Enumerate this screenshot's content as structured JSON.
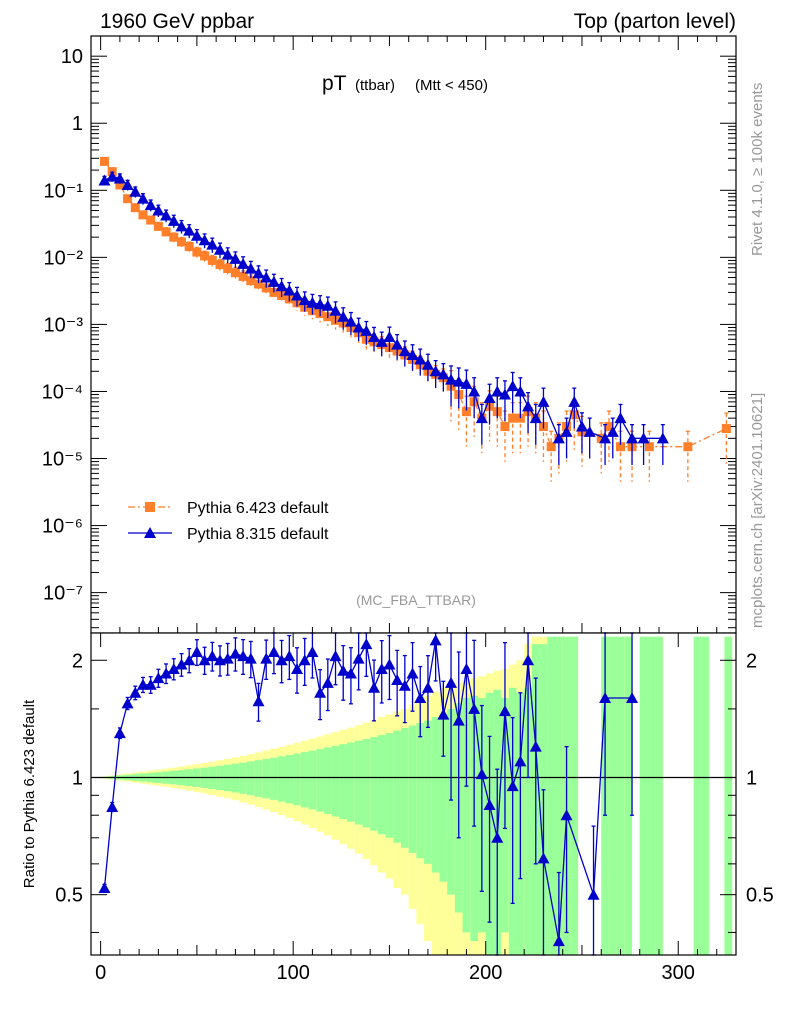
{
  "header": {
    "left": "1960 GeV ppbar",
    "right": "Top (parton level)"
  },
  "plot_title": {
    "main": "pT",
    "sub": "(ttbar)",
    "cut": "(Mtt < 450)"
  },
  "side_labels": {
    "rivet": "Rivet 4.1.0, ≥ 100k events",
    "mcplots": "mcplots.cern.ch [arXiv:2401.10621]"
  },
  "analysis_tag": "(MC_FBA_TTBAR)",
  "colors": {
    "pythia6": "#ff7f2a",
    "pythia8": "#0000cc",
    "band_inner": "#99ff99",
    "band_outer": "#ffff99"
  },
  "chart_data": [
    {
      "type": "scatter",
      "yscale": "log",
      "xlim": [
        -5,
        330
      ],
      "ylim": [
        2.5e-08,
        20
      ],
      "ytick_labels": [
        "10",
        "1",
        "10⁻¹",
        "10⁻²",
        "10⁻³",
        "10⁻⁴",
        "10⁻⁵",
        "10⁻⁶",
        "10⁻⁷"
      ],
      "ytick_values": [
        10,
        1,
        0.1,
        0.01,
        0.001,
        0.0001,
        1e-05,
        1e-06,
        1e-07
      ],
      "legend": [
        {
          "label": "Pythia 6.423 default",
          "series": 0
        },
        {
          "label": "Pythia 8.315 default",
          "series": 1
        }
      ],
      "series": [
        {
          "name": "Pythia 6.423 default",
          "marker": "square",
          "line": "dashdot",
          "points": [
            [
              2,
              0.27
            ],
            [
              6,
              0.19
            ],
            [
              10,
              0.12
            ],
            [
              14,
              0.075
            ],
            [
              18,
              0.055
            ],
            [
              22,
              0.043
            ],
            [
              26,
              0.036
            ],
            [
              30,
              0.029
            ],
            [
              34,
              0.024
            ],
            [
              38,
              0.02
            ],
            [
              42,
              0.017
            ],
            [
              46,
              0.0145
            ],
            [
              50,
              0.012
            ],
            [
              54,
              0.0105
            ],
            [
              58,
              0.009
            ],
            [
              62,
              0.0078
            ],
            [
              66,
              0.0068
            ],
            [
              70,
              0.0059
            ],
            [
              74,
              0.0052
            ],
            [
              78,
              0.0045
            ],
            [
              82,
              0.004
            ],
            [
              86,
              0.0035
            ],
            [
              90,
              0.003
            ],
            [
              94,
              0.0027
            ],
            [
              98,
              0.0024
            ],
            [
              102,
              0.0021
            ],
            [
              106,
              0.0018
            ],
            [
              110,
              0.0016
            ],
            [
              114,
              0.00145
            ],
            [
              118,
              0.0013
            ],
            [
              122,
              0.00115
            ],
            [
              126,
              0.00105
            ],
            [
              130,
              0.0009
            ],
            [
              134,
              0.00075
            ],
            [
              138,
              0.0006
            ],
            [
              142,
              0.00055
            ],
            [
              146,
              0.0005
            ],
            [
              150,
              0.00045
            ],
            [
              154,
              0.0004
            ],
            [
              158,
              0.00035
            ],
            [
              162,
              0.0003
            ],
            [
              166,
              0.00025
            ],
            [
              170,
              0.0002
            ],
            [
              174,
              0.00018
            ],
            [
              178,
              0.00016
            ],
            [
              182,
              0.00012
            ],
            [
              186,
              9e-05
            ],
            [
              190,
              5e-05
            ],
            [
              194,
              7e-05
            ],
            [
              198,
              4e-05
            ],
            [
              202,
              6e-05
            ],
            [
              206,
              5e-05
            ],
            [
              210,
              3e-05
            ],
            [
              214,
              4e-05
            ],
            [
              218,
              4e-05
            ],
            [
              222,
              5e-05
            ],
            [
              226,
              4e-05
            ],
            [
              230,
              3e-05
            ],
            [
              234,
              1.5e-05
            ],
            [
              238,
              2e-05
            ],
            [
              242,
              3e-05
            ],
            [
              246,
              4.5e-05
            ],
            [
              250,
              2.5e-05
            ],
            [
              260,
              2e-05
            ],
            [
              264,
              3e-05
            ],
            [
              270,
              1.5e-05
            ],
            [
              276,
              1.5e-05
            ],
            [
              285,
              1.5e-05
            ],
            [
              305,
              1.5e-05
            ],
            [
              325,
              2.8e-05
            ]
          ]
        },
        {
          "name": "Pythia 8.315 default",
          "marker": "triangle",
          "line": "solid",
          "points": [
            [
              2,
              0.14
            ],
            [
              6,
              0.16
            ],
            [
              10,
              0.15
            ],
            [
              14,
              0.12
            ],
            [
              18,
              0.095
            ],
            [
              22,
              0.075
            ],
            [
              26,
              0.06
            ],
            [
              30,
              0.05
            ],
            [
              34,
              0.042
            ],
            [
              38,
              0.035
            ],
            [
              42,
              0.029
            ],
            [
              46,
              0.025
            ],
            [
              50,
              0.021
            ],
            [
              54,
              0.018
            ],
            [
              58,
              0.0155
            ],
            [
              62,
              0.013
            ],
            [
              66,
              0.011
            ],
            [
              70,
              0.0095
            ],
            [
              74,
              0.008
            ],
            [
              78,
              0.0068
            ],
            [
              82,
              0.0058
            ],
            [
              86,
              0.005
            ],
            [
              90,
              0.0043
            ],
            [
              94,
              0.0037
            ],
            [
              98,
              0.0032
            ],
            [
              102,
              0.0027
            ],
            [
              106,
              0.0023
            ],
            [
              110,
              0.0021
            ],
            [
              114,
              0.002
            ],
            [
              118,
              0.0019
            ],
            [
              122,
              0.0016
            ],
            [
              126,
              0.0013
            ],
            [
              130,
              0.0011
            ],
            [
              134,
              0.0009
            ],
            [
              138,
              0.0008
            ],
            [
              142,
              0.00065
            ],
            [
              146,
              0.00055
            ],
            [
              150,
              0.00065
            ],
            [
              154,
              0.0005
            ],
            [
              158,
              0.0004
            ],
            [
              162,
              0.00035
            ],
            [
              166,
              0.0003
            ],
            [
              170,
              0.00025
            ],
            [
              174,
              0.0002
            ],
            [
              178,
              0.00018
            ],
            [
              182,
              0.00015
            ],
            [
              186,
              0.00014
            ],
            [
              190,
              0.00013
            ],
            [
              194,
              0.0001
            ],
            [
              198,
              4e-05
            ],
            [
              202,
              8e-05
            ],
            [
              206,
              0.0001
            ],
            [
              210,
              9e-05
            ],
            [
              214,
              0.00012
            ],
            [
              218,
              0.0001
            ],
            [
              222,
              6e-05
            ],
            [
              226,
              4e-05
            ],
            [
              230,
              7e-05
            ],
            [
              238,
              2e-05
            ],
            [
              242,
              2.5e-05
            ],
            [
              246,
              7e-05
            ],
            [
              250,
              3e-05
            ],
            [
              254,
              2.5e-05
            ],
            [
              262,
              2e-05
            ],
            [
              266,
              2.5e-05
            ],
            [
              270,
              4e-05
            ],
            [
              276,
              2e-05
            ],
            [
              282,
              2e-05
            ],
            [
              292,
              2e-05
            ]
          ]
        }
      ]
    },
    {
      "type": "line",
      "ylabel": "Ratio to Pythia 6.423 default",
      "ylim": [
        0.35,
        2.35
      ],
      "xtick_labels": [
        "0",
        "100",
        "200",
        "300"
      ],
      "xtick_values": [
        0,
        100,
        200,
        300
      ],
      "ytick_labels": [
        "0.5",
        "1",
        "2"
      ],
      "ytick_values": [
        0.5,
        1,
        2
      ],
      "reference_line": 1,
      "ratio_series": [
        [
          2,
          0.52
        ],
        [
          6,
          0.84
        ],
        [
          10,
          1.3
        ],
        [
          14,
          1.55
        ],
        [
          18,
          1.65
        ],
        [
          22,
          1.73
        ],
        [
          26,
          1.73
        ],
        [
          30,
          1.8
        ],
        [
          34,
          1.85
        ],
        [
          38,
          1.9
        ],
        [
          42,
          1.95
        ],
        [
          46,
          2.0
        ],
        [
          50,
          2.1
        ],
        [
          54,
          2.0
        ],
        [
          58,
          2.05
        ],
        [
          62,
          2.0
        ],
        [
          66,
          2.02
        ],
        [
          70,
          2.08
        ],
        [
          74,
          2.05
        ],
        [
          78,
          2.02
        ],
        [
          82,
          1.57
        ],
        [
          86,
          2.02
        ],
        [
          90,
          2.1
        ],
        [
          94,
          2.0
        ],
        [
          98,
          2.05
        ],
        [
          102,
          1.9
        ],
        [
          106,
          2.0
        ],
        [
          110,
          2.1
        ],
        [
          114,
          1.65
        ],
        [
          118,
          1.75
        ],
        [
          122,
          2.05
        ],
        [
          126,
          1.88
        ],
        [
          130,
          1.85
        ],
        [
          134,
          2.02
        ],
        [
          138,
          2.2
        ],
        [
          142,
          1.7
        ],
        [
          146,
          1.9
        ],
        [
          150,
          1.95
        ],
        [
          154,
          1.78
        ],
        [
          158,
          1.72
        ],
        [
          162,
          1.85
        ],
        [
          166,
          1.6
        ],
        [
          170,
          1.7
        ],
        [
          174,
          2.25
        ],
        [
          178,
          1.45
        ],
        [
          182,
          1.75
        ],
        [
          186,
          1.4
        ],
        [
          190,
          1.9
        ],
        [
          194,
          1.5
        ],
        [
          198,
          1.02
        ],
        [
          202,
          0.85
        ],
        [
          206,
          0.7
        ],
        [
          210,
          1.48
        ],
        [
          214,
          0.95
        ],
        [
          218,
          1.1
        ],
        [
          222,
          2.0
        ],
        [
          226,
          1.2
        ],
        [
          230,
          0.62
        ],
        [
          238,
          0.38
        ],
        [
          242,
          0.8
        ],
        [
          256,
          0.5
        ],
        [
          262,
          1.6
        ],
        [
          276,
          1.6
        ]
      ],
      "band_edges": [
        0,
        4,
        8,
        12,
        16,
        20,
        24,
        28,
        32,
        36,
        40,
        44,
        48,
        52,
        56,
        60,
        64,
        68,
        72,
        76,
        80,
        84,
        88,
        92,
        96,
        100,
        104,
        108,
        112,
        116,
        120,
        124,
        128,
        132,
        136,
        140,
        144,
        148,
        152,
        156,
        160,
        164,
        168,
        172,
        176,
        180,
        184,
        188,
        192,
        196,
        200,
        204,
        208,
        212,
        216,
        220,
        224,
        228,
        232,
        236,
        240,
        244,
        248,
        252,
        256,
        260,
        264,
        268,
        272,
        276,
        280,
        284,
        288,
        292,
        296,
        300,
        304,
        308,
        312,
        316,
        320,
        324,
        328
      ],
      "band_inner": [
        0.004,
        0.008,
        0.012,
        0.016,
        0.02,
        0.024,
        0.028,
        0.032,
        0.036,
        0.04,
        0.045,
        0.05,
        0.055,
        0.06,
        0.066,
        0.072,
        0.078,
        0.085,
        0.092,
        0.1,
        0.108,
        0.116,
        0.124,
        0.133,
        0.142,
        0.152,
        0.162,
        0.172,
        0.183,
        0.194,
        0.206,
        0.218,
        0.23,
        0.243,
        0.256,
        0.27,
        0.285,
        0.3,
        0.32,
        0.34,
        0.36,
        0.38,
        0.4,
        0.43,
        0.46,
        0.5,
        0.55,
        0.6,
        0.62,
        0.6,
        0.65,
        0.68,
        0.6,
        0.7,
        0.65,
        0.7,
        1.2,
        1.2,
        1.3,
        1.3,
        1.3,
        1.3,
        0,
        0,
        0,
        1.3,
        1.3,
        1.3,
        1.3,
        0,
        1.3,
        1.3,
        1.3,
        0,
        0,
        0,
        0,
        1.3,
        1.3,
        0,
        0,
        1.3,
        0
      ],
      "band_outer": [
        0.006,
        0.012,
        0.018,
        0.024,
        0.03,
        0.036,
        0.042,
        0.048,
        0.054,
        0.06,
        0.067,
        0.075,
        0.083,
        0.09,
        0.098,
        0.107,
        0.116,
        0.126,
        0.137,
        0.148,
        0.16,
        0.172,
        0.185,
        0.199,
        0.213,
        0.228,
        0.243,
        0.258,
        0.274,
        0.29,
        0.308,
        0.326,
        0.344,
        0.363,
        0.383,
        0.405,
        0.43,
        0.45,
        0.48,
        0.5,
        0.54,
        0.58,
        0.62,
        0.66,
        0.7,
        0.72,
        0.75,
        0.78,
        0.8,
        0.82,
        0.85,
        0.88,
        0.9,
        0.95,
        1.0,
        1.2,
        1.3,
        1.3,
        1.3,
        1.3,
        1.3,
        1.3,
        0,
        0,
        0,
        1.3,
        1.3,
        1.3,
        1.3,
        0,
        1.3,
        1.3,
        1.3,
        0,
        0,
        0,
        0,
        1.3,
        1.3,
        0,
        0,
        1.3,
        0
      ]
    }
  ]
}
